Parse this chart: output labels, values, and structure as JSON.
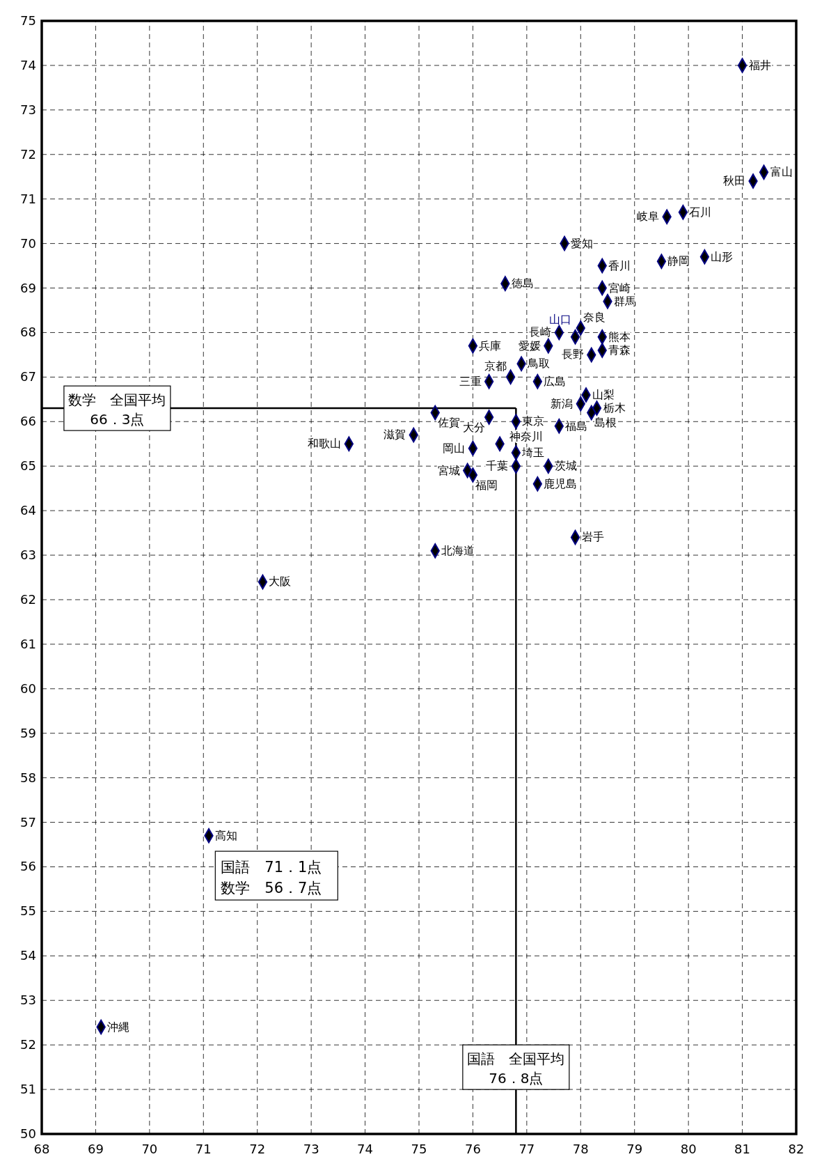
{
  "chart_data": {
    "type": "scatter",
    "marker": "diamond",
    "grid": true,
    "xlim": [
      68,
      82
    ],
    "xticks": [
      68,
      69,
      70,
      71,
      72,
      73,
      74,
      75,
      76,
      77,
      78,
      79,
      80,
      81,
      82
    ],
    "ylim": [
      50,
      75
    ],
    "yticks": [
      50,
      51,
      52,
      53,
      54,
      55,
      56,
      57,
      58,
      59,
      60,
      61,
      62,
      63,
      64,
      65,
      66,
      67,
      68,
      69,
      70,
      71,
      72,
      73,
      74,
      75
    ],
    "series": [
      {
        "name": "福井",
        "color": "#000080",
        "x": [
          81.0
        ],
        "values": [
          74.0
        ]
      },
      {
        "name": "富山",
        "color": "#000080",
        "x": [
          81.4
        ],
        "values": [
          71.6
        ]
      },
      {
        "name": "秋田",
        "color": "#000080",
        "x": [
          81.2
        ],
        "values": [
          71.4
        ]
      },
      {
        "name": "石川",
        "color": "#000080",
        "x": [
          79.9
        ],
        "values": [
          70.7
        ]
      },
      {
        "name": "岐阜",
        "color": "#000080",
        "x": [
          79.6
        ],
        "values": [
          70.6
        ]
      },
      {
        "name": "愛知",
        "color": "#000080",
        "x": [
          77.7
        ],
        "values": [
          70.0
        ]
      },
      {
        "name": "山形",
        "color": "#000080",
        "x": [
          80.3
        ],
        "values": [
          69.7
        ]
      },
      {
        "name": "静岡",
        "color": "#000080",
        "x": [
          79.5
        ],
        "values": [
          69.6
        ]
      },
      {
        "name": "香川",
        "color": "#000080",
        "x": [
          78.4
        ],
        "values": [
          69.5
        ]
      },
      {
        "name": "徳島",
        "color": "#000080",
        "x": [
          76.6
        ],
        "values": [
          69.1
        ]
      },
      {
        "name": "宮崎",
        "color": "#000080",
        "x": [
          78.4
        ],
        "values": [
          69.0
        ]
      },
      {
        "name": "群馬",
        "color": "#000080",
        "x": [
          78.5
        ],
        "values": [
          68.7
        ]
      },
      {
        "name": "奈良",
        "color": "#000080",
        "x": [
          78.0
        ],
        "values": [
          68.1
        ]
      },
      {
        "name": "長崎",
        "color": "#000080",
        "x": [
          77.6
        ],
        "values": [
          68.0
        ]
      },
      {
        "name": "熊本",
        "color": "#000080",
        "x": [
          78.4
        ],
        "values": [
          67.9
        ]
      },
      {
        "name": "山口",
        "color": "#000080",
        "x": [
          77.9
        ],
        "values": [
          67.9
        ]
      },
      {
        "name": "兵庫",
        "color": "#000080",
        "x": [
          76.0
        ],
        "values": [
          67.7
        ]
      },
      {
        "name": "愛媛",
        "color": "#000080",
        "x": [
          77.4
        ],
        "values": [
          67.7
        ]
      },
      {
        "name": "青森",
        "color": "#000080",
        "x": [
          78.4
        ],
        "values": [
          67.6
        ]
      },
      {
        "name": "長野",
        "color": "#000080",
        "x": [
          78.2
        ],
        "values": [
          67.5
        ]
      },
      {
        "name": "鳥取",
        "color": "#000080",
        "x": [
          76.9
        ],
        "values": [
          67.3
        ]
      },
      {
        "name": "京都",
        "color": "#000080",
        "x": [
          76.7
        ],
        "values": [
          67.0
        ]
      },
      {
        "name": "広島",
        "color": "#000080",
        "x": [
          77.2
        ],
        "values": [
          66.9
        ]
      },
      {
        "name": "三重",
        "color": "#000080",
        "x": [
          76.3
        ],
        "values": [
          66.9
        ]
      },
      {
        "name": "山梨",
        "color": "#000080",
        "x": [
          78.1
        ],
        "values": [
          66.6
        ]
      },
      {
        "name": "新潟",
        "color": "#000080",
        "x": [
          78.0
        ],
        "values": [
          66.4
        ]
      },
      {
        "name": "栃木",
        "color": "#000080",
        "x": [
          78.3
        ],
        "values": [
          66.3
        ]
      },
      {
        "name": "島根",
        "color": "#000080",
        "x": [
          78.2
        ],
        "values": [
          66.2
        ]
      },
      {
        "name": "佐賀",
        "color": "#000080",
        "x": [
          75.3
        ],
        "values": [
          66.2
        ]
      },
      {
        "name": "大分",
        "color": "#000080",
        "x": [
          76.3
        ],
        "values": [
          66.1
        ]
      },
      {
        "name": "東京",
        "color": "#000080",
        "x": [
          76.8
        ],
        "values": [
          66.0
        ]
      },
      {
        "name": "福島",
        "color": "#000080",
        "x": [
          77.6
        ],
        "values": [
          65.9
        ]
      },
      {
        "name": "滋賀",
        "color": "#000080",
        "x": [
          74.9
        ],
        "values": [
          65.7
        ]
      },
      {
        "name": "和歌山",
        "color": "#000080",
        "x": [
          73.7
        ],
        "values": [
          65.5
        ]
      },
      {
        "name": "神奈川",
        "color": "#000080",
        "x": [
          76.5
        ],
        "values": [
          65.5
        ]
      },
      {
        "name": "岡山",
        "color": "#000080",
        "x": [
          76.0
        ],
        "values": [
          65.4
        ]
      },
      {
        "name": "埼玉",
        "color": "#000080",
        "x": [
          76.8
        ],
        "values": [
          65.3
        ]
      },
      {
        "name": "茨城",
        "color": "#000080",
        "x": [
          77.4
        ],
        "values": [
          65.0
        ]
      },
      {
        "name": "千葉",
        "color": "#000080",
        "x": [
          76.8
        ],
        "values": [
          65.0
        ]
      },
      {
        "name": "宮城",
        "color": "#000080",
        "x": [
          75.9
        ],
        "values": [
          64.9
        ]
      },
      {
        "name": "福岡",
        "color": "#000080",
        "x": [
          76.0
        ],
        "values": [
          64.8
        ]
      },
      {
        "name": "鹿児島",
        "color": "#000080",
        "x": [
          77.2
        ],
        "values": [
          64.6
        ]
      },
      {
        "name": "岩手",
        "color": "#000080",
        "x": [
          77.9
        ],
        "values": [
          63.4
        ]
      },
      {
        "name": "北海道",
        "color": "#000080",
        "x": [
          75.3
        ],
        "values": [
          63.1
        ]
      },
      {
        "name": "大阪",
        "color": "#000080",
        "x": [
          72.1
        ],
        "values": [
          62.4
        ]
      },
      {
        "name": "高知",
        "color": "#000080",
        "x": [
          71.1
        ],
        "values": [
          56.7
        ]
      },
      {
        "name": "沖縄",
        "color": "#000080",
        "x": [
          69.1
        ],
        "values": [
          52.4
        ]
      }
    ],
    "ref_lines": [
      {
        "axis": "x",
        "value": 76.8,
        "label": "国語　全国平均\n76．8点"
      },
      {
        "axis": "y",
        "value": 66.3,
        "label": "数学　全国平均\n66．3点"
      }
    ],
    "annotations": [
      "国語　71．1点",
      "数学　56．7点"
    ]
  }
}
